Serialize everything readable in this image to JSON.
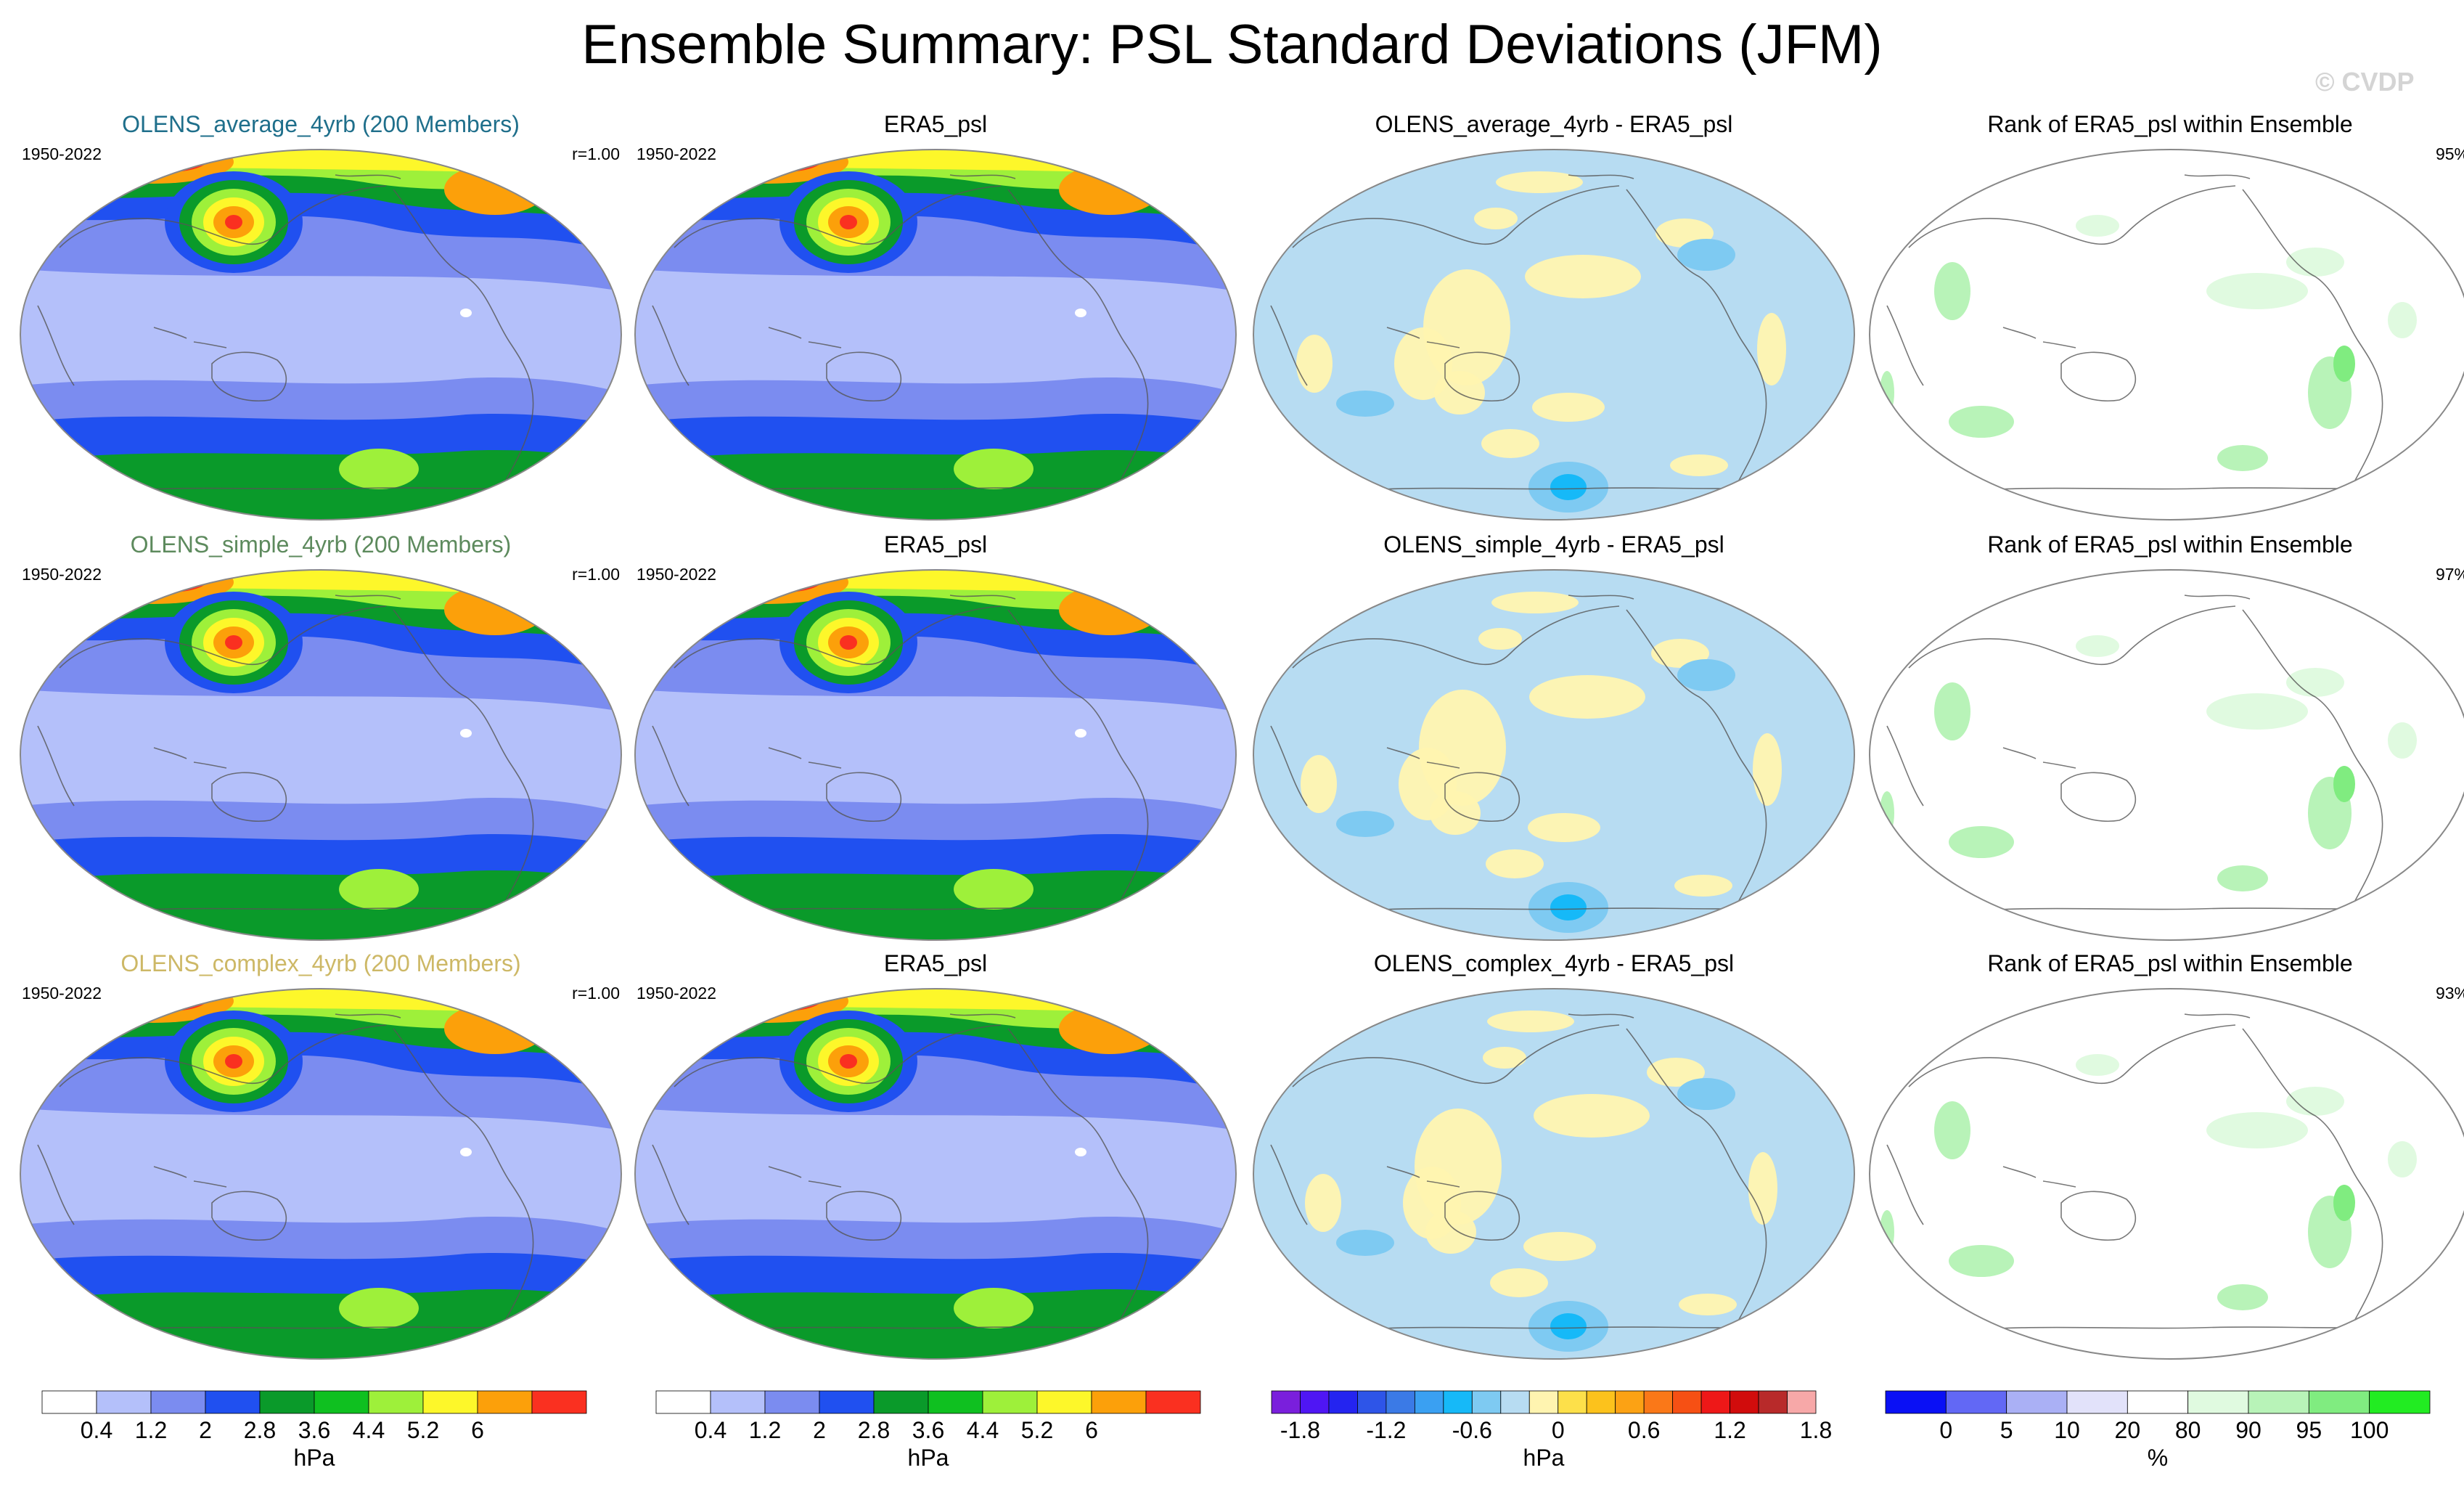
{
  "title": "Ensemble Summary: PSL Standard Deviations (JFM)",
  "watermark": "© CVDP",
  "rows": [
    {
      "model_title": "OLENS_average_4yrb (200 Members)",
      "model_title_color": "#1f6f8b",
      "period_model": "1950-2022",
      "corr": "r=1.00",
      "obs_title": "ERA5_psl",
      "period_obs": "1950-2022",
      "diff_title": "OLENS_average_4yrb - ERA5_psl",
      "rank_title": "Rank of ERA5_psl within Ensemble",
      "rank_pct": "95%"
    },
    {
      "model_title": "OLENS_simple_4yrb (200 Members)",
      "model_title_color": "#5d8a5d",
      "period_model": "1950-2022",
      "corr": "r=1.00",
      "obs_title": "ERA5_psl",
      "period_obs": "1950-2022",
      "diff_title": "OLENS_simple_4yrb - ERA5_psl",
      "rank_title": "Rank of ERA5_psl within Ensemble",
      "rank_pct": "97%"
    },
    {
      "model_title": "OLENS_complex_4yrb (200 Members)",
      "model_title_color": "#cdb866",
      "period_model": "1950-2022",
      "corr": "r=1.00",
      "obs_title": "ERA5_psl",
      "period_obs": "1950-2022",
      "diff_title": "OLENS_complex_4yrb - ERA5_psl",
      "rank_title": "Rank of ERA5_psl within Ensemble",
      "rank_pct": "93%"
    }
  ],
  "colorbars": [
    {
      "name": "stddev-colorbar-model",
      "unit": "hPa",
      "colors": [
        "#ffffff",
        "#b4c0fa",
        "#7b8cf0",
        "#2050f0",
        "#0a9a2a",
        "#0fc020",
        "#9ef03a",
        "#fdf72a",
        "#fca00a",
        "#fa3020"
      ],
      "labels": [
        "0.4",
        "1.2",
        "2",
        "2.8",
        "3.6",
        "4.4",
        "5.2",
        "6"
      ]
    },
    {
      "name": "stddev-colorbar-obs",
      "unit": "hPa",
      "colors": [
        "#ffffff",
        "#b4c0fa",
        "#7b8cf0",
        "#2050f0",
        "#0a9a2a",
        "#0fc020",
        "#9ef03a",
        "#fdf72a",
        "#fca00a",
        "#fa3020"
      ],
      "labels": [
        "0.4",
        "1.2",
        "2",
        "2.8",
        "3.6",
        "4.4",
        "5.2",
        "6"
      ]
    },
    {
      "name": "difference-colorbar",
      "unit": "hPa",
      "colors": [
        "#7a1fdc",
        "#4f16f4",
        "#2424f0",
        "#2e55e8",
        "#3b7ae6",
        "#3aa0f2",
        "#16b9f8",
        "#7ecaf2",
        "#b7dcf2",
        "#fff4b0",
        "#fde04a",
        "#fcc21c",
        "#fca214",
        "#fa7818",
        "#f65014",
        "#ee1818",
        "#d10c0c",
        "#b82a2a",
        "#f7a8a8"
      ],
      "labels": [
        "-1.8",
        "-1.2",
        "-0.6",
        "0",
        "0.6",
        "1.2",
        "1.8"
      ]
    },
    {
      "name": "rank-colorbar",
      "unit": "%",
      "colors": [
        "#0a10f5",
        "#6268f5",
        "#aab0f5",
        "#e2e2fa",
        "#ffffff",
        "#e0fae0",
        "#b8f3b8",
        "#80ec80",
        "#22ec22"
      ],
      "labels": [
        "0",
        "5",
        "10",
        "20",
        "80",
        "90",
        "95",
        "100"
      ]
    }
  ]
}
